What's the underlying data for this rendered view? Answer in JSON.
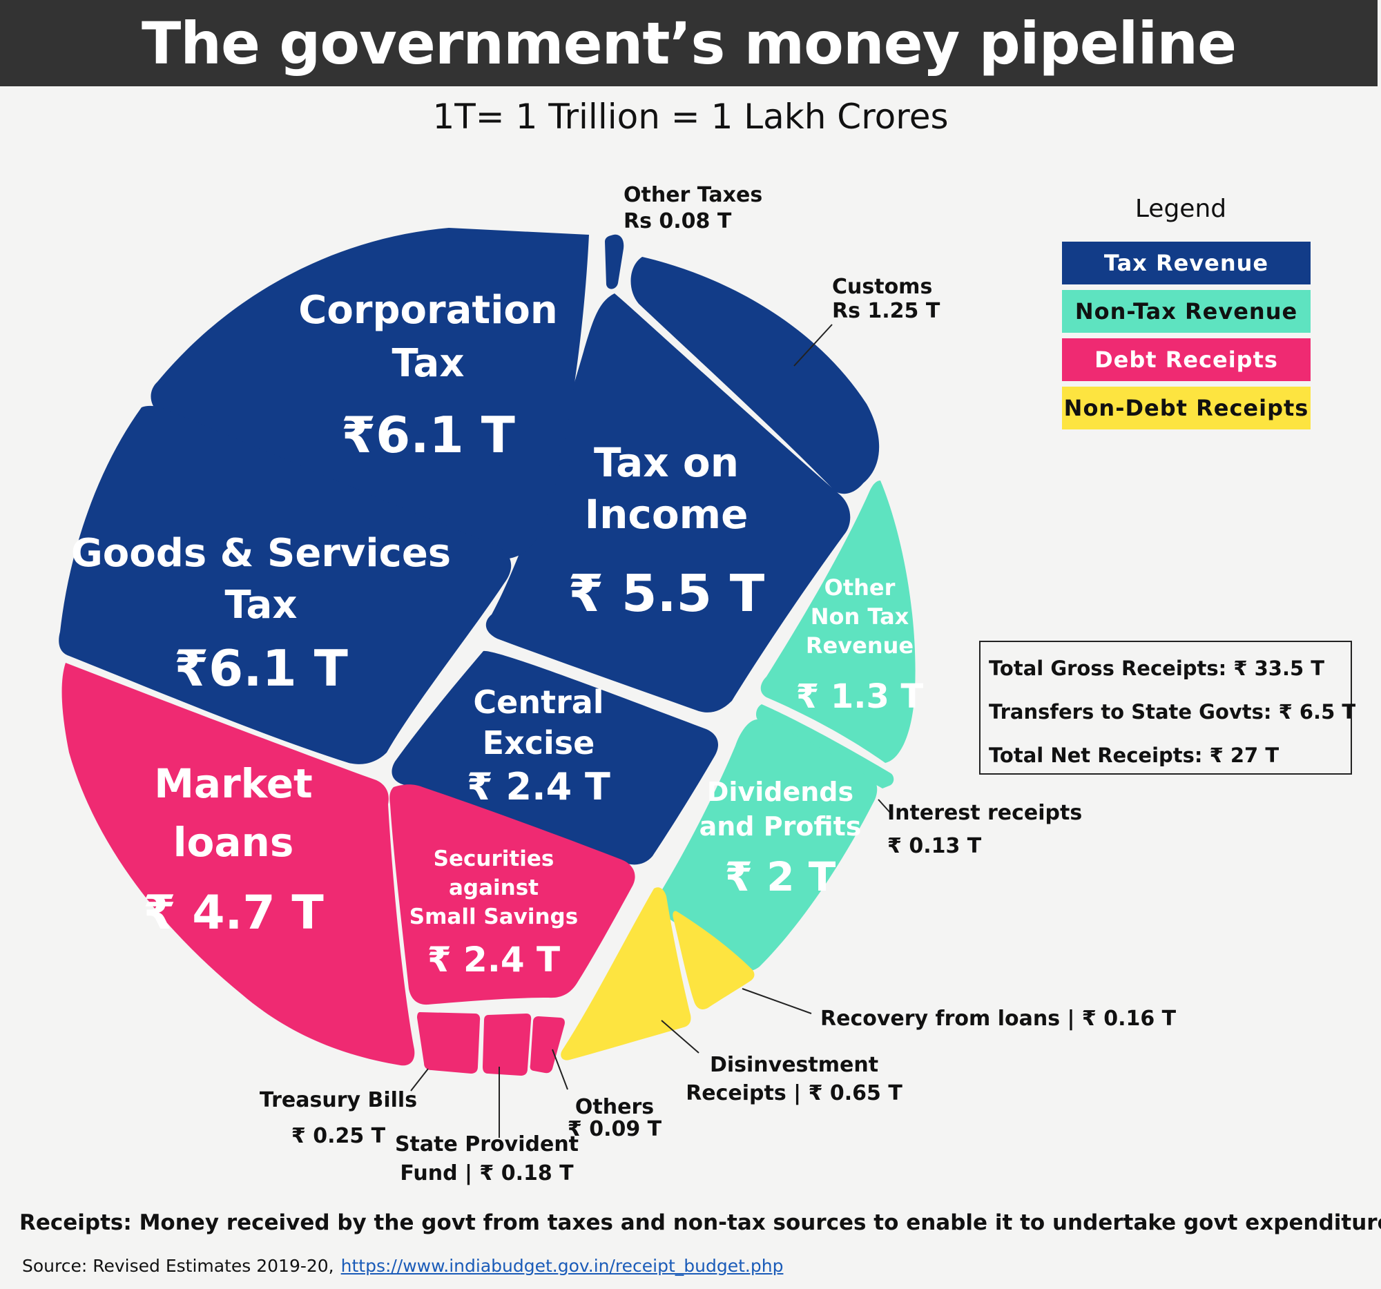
{
  "title": "The government’s money pipeline",
  "subtitle": "1T= 1 Trillion = 1 Lakh Crores",
  "legend": {
    "title": "Legend",
    "items": [
      {
        "label": "Tax Revenue",
        "color": "#123c88",
        "text_color": "#ffffff"
      },
      {
        "label": "Non-Tax Revenue",
        "color": "#5ee3c0",
        "text_color": "#111111"
      },
      {
        "label": "Debt Receipts",
        "color": "#ef2a72",
        "text_color": "#ffffff"
      },
      {
        "label": "Non-Debt Receipts",
        "color": "#fde440",
        "text_color": "#111111"
      }
    ]
  },
  "totals": {
    "gross": "Total Gross Receipts: ₹ 33.5 T",
    "transfers": "Transfers to State Govts: ₹ 6.5 T",
    "net": "Total Net Receipts: ₹ 27 T"
  },
  "chart_data": {
    "type": "treemap",
    "unit": "T",
    "categories": [
      {
        "name": "Tax on Income",
        "value": 5.5,
        "group": "Tax Revenue",
        "label_lines": [
          "Tax on",
          "Income",
          "₹ 5.5 T"
        ]
      },
      {
        "name": "Corporation Tax",
        "value": 6.1,
        "group": "Tax Revenue",
        "label_lines": [
          "Corporation",
          "Tax",
          "₹6.1 T"
        ]
      },
      {
        "name": "Goods & Services Tax",
        "value": 6.1,
        "group": "Tax Revenue",
        "label_lines": [
          "Goods & Services",
          "Tax",
          "₹6.1 T"
        ]
      },
      {
        "name": "Central Excise",
        "value": 2.4,
        "group": "Tax Revenue",
        "label_lines": [
          "Central",
          "Excise",
          "₹ 2.4 T"
        ]
      },
      {
        "name": "Customs",
        "value": 1.25,
        "group": "Tax Revenue",
        "label_lines": [
          "Customs",
          "Rs 1.25 T"
        ]
      },
      {
        "name": "Other Taxes",
        "value": 0.08,
        "group": "Tax Revenue",
        "label_lines": [
          "Other Taxes",
          "Rs 0.08 T"
        ]
      },
      {
        "name": "Other Non Tax Revenue",
        "value": 1.3,
        "group": "Non-Tax Revenue",
        "label_lines": [
          "Other",
          "Non Tax",
          "Revenue",
          "₹ 1.3 T"
        ]
      },
      {
        "name": "Interest receipts",
        "value": 0.13,
        "group": "Non-Tax Revenue",
        "label_lines": [
          "Interest receipts",
          "₹ 0.13 T"
        ]
      },
      {
        "name": "Dividends and Profits",
        "value": 2,
        "group": "Non-Tax Revenue",
        "label_lines": [
          "Dividends",
          "and Profits",
          "₹ 2 T"
        ]
      },
      {
        "name": "Recovery from loans",
        "value": 0.16,
        "group": "Non-Debt Receipts",
        "label_lines": [
          "Recovery from loans | ₹ 0.16 T"
        ]
      },
      {
        "name": "Disinvestment Receipts",
        "value": 0.65,
        "group": "Non-Debt Receipts",
        "label_lines": [
          "Disinvestment",
          "Receipts | ₹ 0.65 T"
        ]
      },
      {
        "name": "Market loans",
        "value": 4.7,
        "group": "Debt Receipts",
        "label_lines": [
          "Market",
          "loans",
          "₹ 4.7 T"
        ]
      },
      {
        "name": "Securities against Small Savings",
        "value": 2.4,
        "group": "Debt Receipts",
        "label_lines": [
          "Securities",
          "against",
          "Small Savings",
          "₹ 2.4 T"
        ]
      },
      {
        "name": "Treasury Bills",
        "value": 0.25,
        "group": "Debt Receipts",
        "label_lines": [
          "Treasury Bills",
          "₹ 0.25 T"
        ]
      },
      {
        "name": "State Provident Fund",
        "value": 0.18,
        "group": "Debt Receipts",
        "label_lines": [
          "State Provident",
          "Fund | ₹ 0.18 T"
        ]
      },
      {
        "name": "Others",
        "value": 0.09,
        "group": "Debt Receipts",
        "label_lines": [
          "Others",
          "₹ 0.09 T"
        ]
      }
    ]
  },
  "footnote": "Receipts: Money received by the govt from taxes and non-tax sources to enable it to undertake govt expenditure",
  "source": {
    "prefix": "Source: Revised Estimates 2019-20,",
    "link": "https://www.indiabudget.gov.in/receipt_budget.php"
  }
}
